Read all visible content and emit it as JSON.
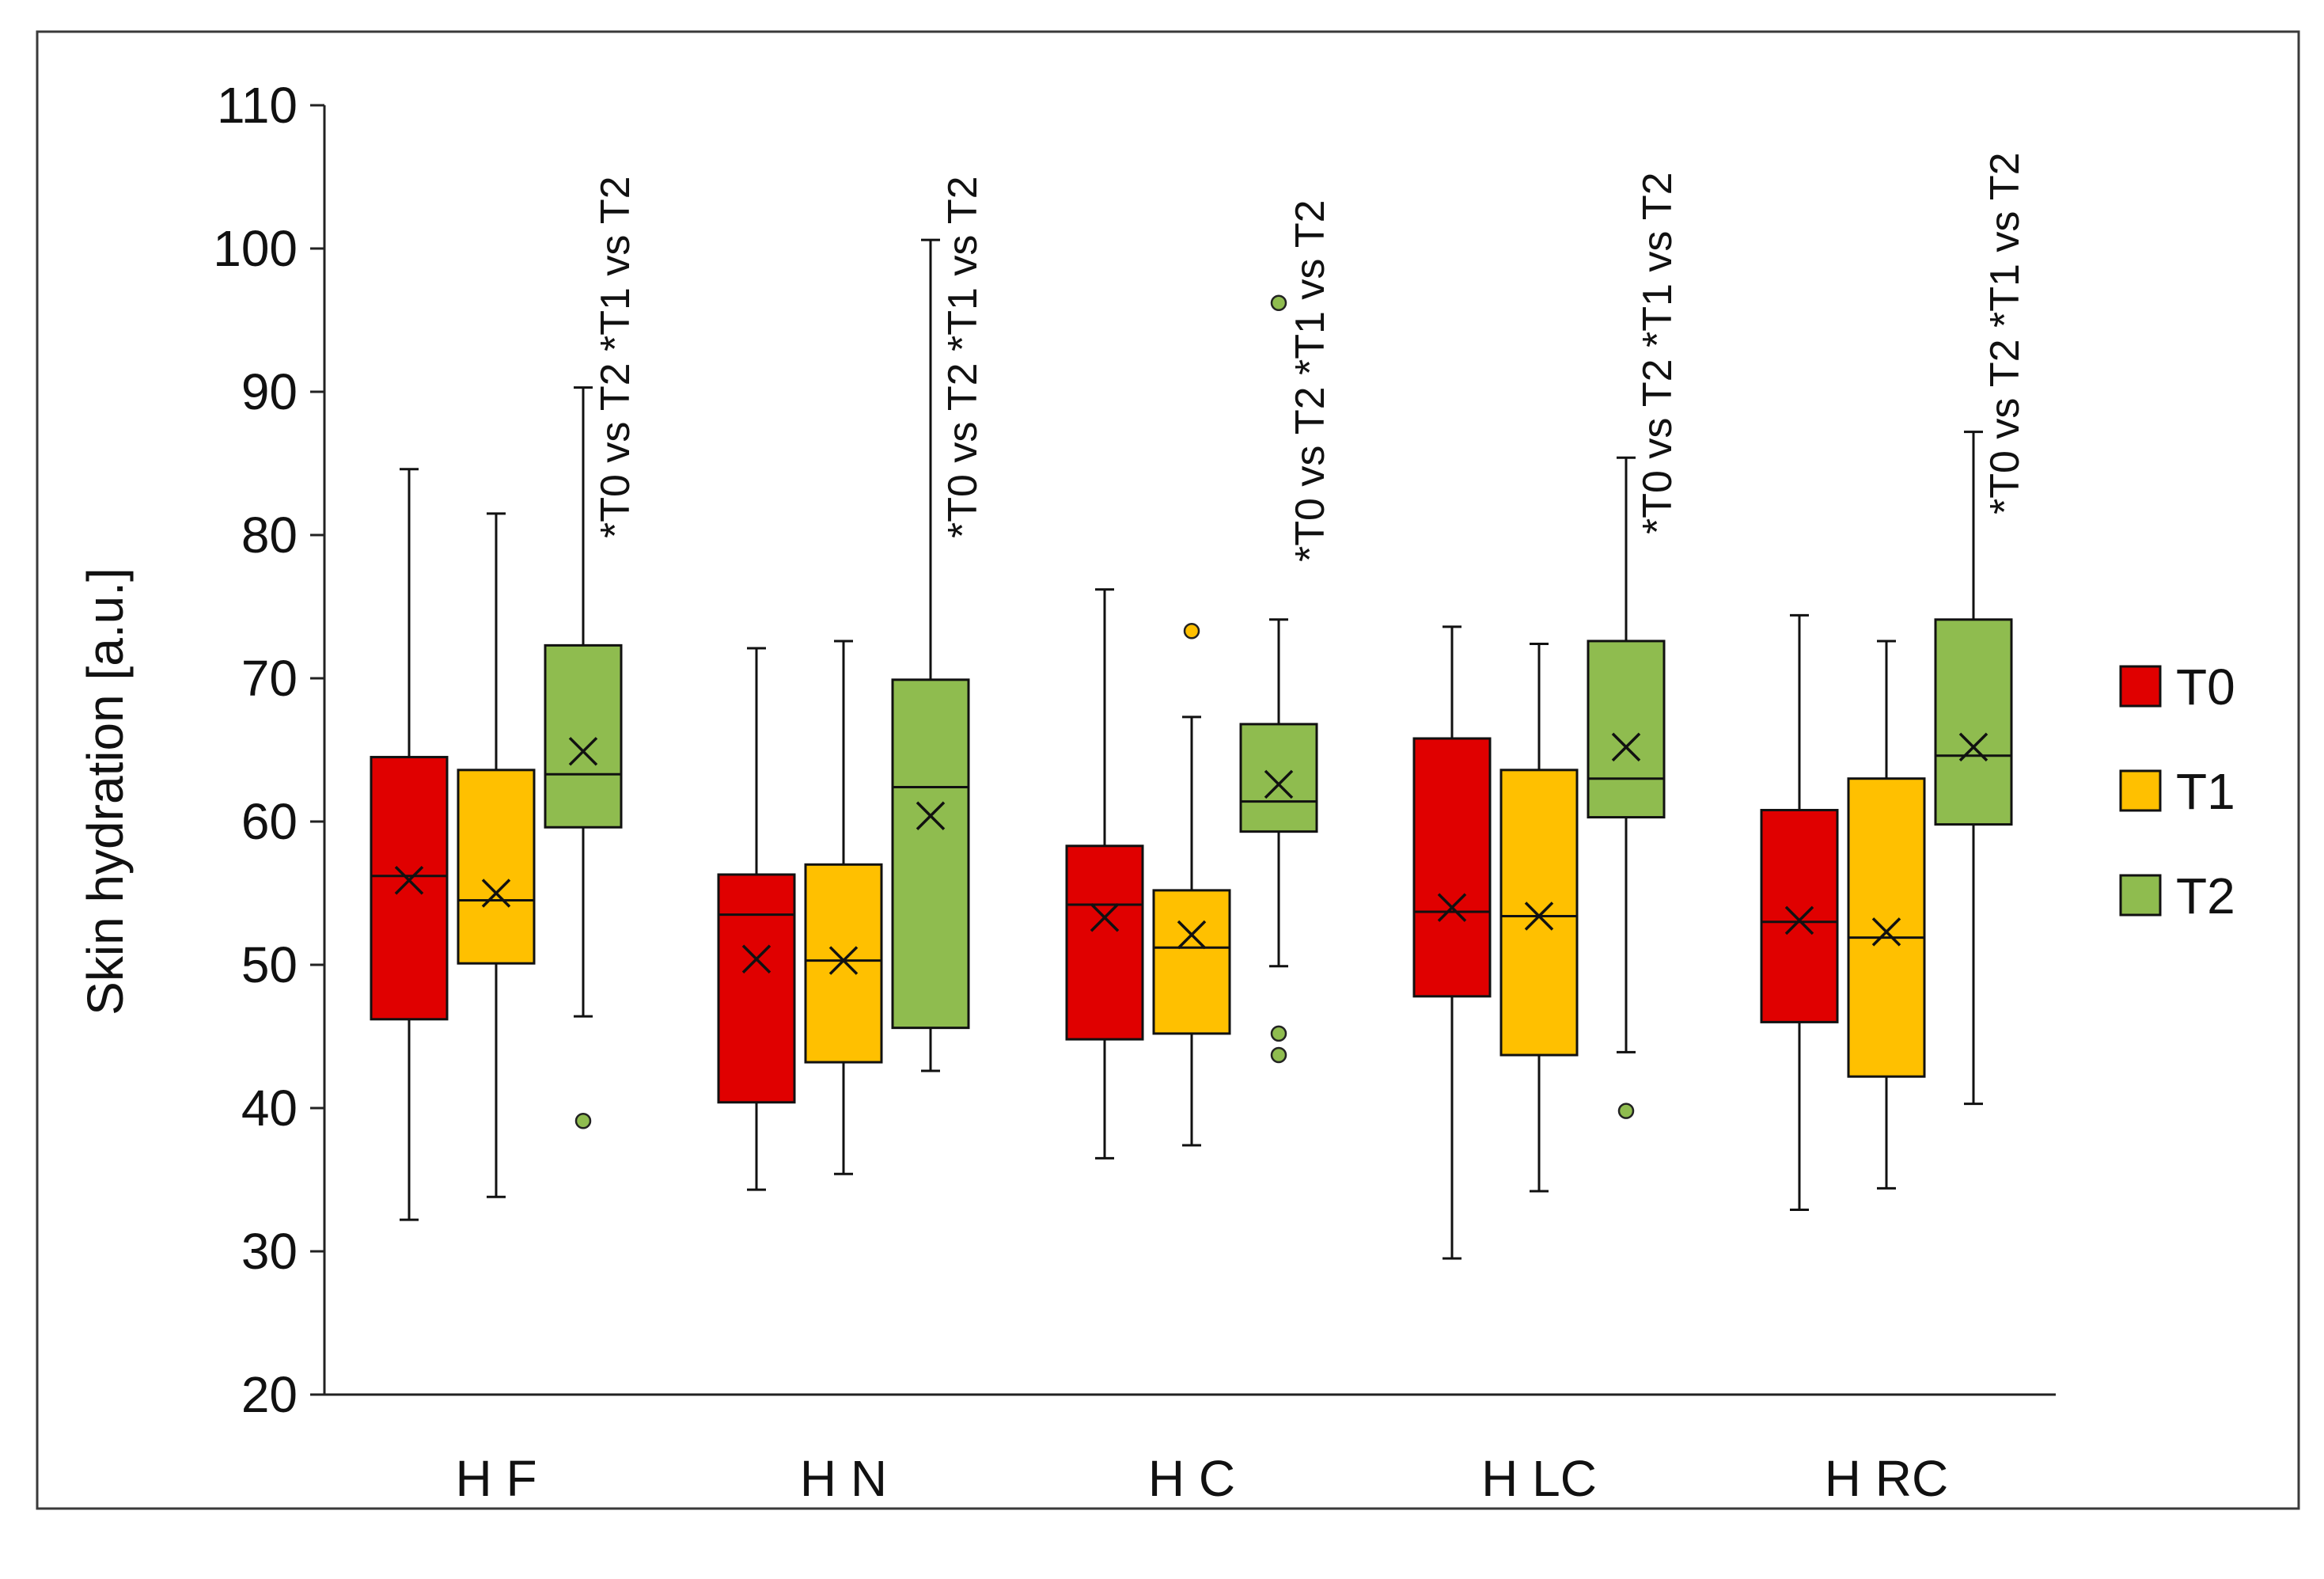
{
  "chart_data": {
    "type": "boxplot",
    "title": "",
    "xlabel": "",
    "ylabel": "Skin hydration [a.u.]",
    "ylim": [
      20,
      110
    ],
    "yticks": [
      20,
      30,
      40,
      50,
      60,
      70,
      80,
      90,
      100,
      110
    ],
    "grid": false,
    "legend_position": "right",
    "categories": [
      "H F",
      "H N",
      "H C",
      "H LC",
      "H RC"
    ],
    "series": [
      {
        "name": "T0",
        "color": "#e00000",
        "boxes": [
          {
            "whisker_low": 32.2,
            "q1": 46.2,
            "median": 56.2,
            "q3": 64.5,
            "whisker_high": 84.6,
            "mean": 55.9,
            "outliers": []
          },
          {
            "whisker_low": 34.3,
            "q1": 40.4,
            "median": 53.5,
            "q3": 56.3,
            "whisker_high": 72.1,
            "mean": 50.4,
            "outliers": []
          },
          {
            "whisker_low": 36.5,
            "q1": 44.8,
            "median": 54.2,
            "q3": 58.3,
            "whisker_high": 76.2,
            "mean": 53.3,
            "outliers": []
          },
          {
            "whisker_low": 29.5,
            "q1": 47.8,
            "median": 53.7,
            "q3": 65.8,
            "whisker_high": 73.6,
            "mean": 54.0,
            "outliers": []
          },
          {
            "whisker_low": 32.9,
            "q1": 46.0,
            "median": 53.0,
            "q3": 60.8,
            "whisker_high": 74.4,
            "mean": 53.1,
            "outliers": []
          }
        ]
      },
      {
        "name": "T1",
        "color": "#ffc000",
        "boxes": [
          {
            "whisker_low": 33.8,
            "q1": 50.1,
            "median": 54.5,
            "q3": 63.6,
            "whisker_high": 81.5,
            "mean": 55.0,
            "outliers": []
          },
          {
            "whisker_low": 35.4,
            "q1": 43.2,
            "median": 50.3,
            "q3": 57.0,
            "whisker_high": 72.6,
            "mean": 50.3,
            "outliers": []
          },
          {
            "whisker_low": 37.4,
            "q1": 45.2,
            "median": 51.2,
            "q3": 55.2,
            "whisker_high": 67.3,
            "mean": 52.1,
            "outliers": [
              73.3
            ]
          },
          {
            "whisker_low": 34.2,
            "q1": 43.7,
            "median": 53.4,
            "q3": 63.6,
            "whisker_high": 72.4,
            "mean": 53.4,
            "outliers": []
          },
          {
            "whisker_low": 34.4,
            "q1": 42.2,
            "median": 51.9,
            "q3": 63.0,
            "whisker_high": 72.6,
            "mean": 52.3,
            "outliers": []
          }
        ]
      },
      {
        "name": "T2",
        "color": "#8fbc4f",
        "boxes": [
          {
            "whisker_low": 46.4,
            "q1": 59.6,
            "median": 63.3,
            "q3": 72.3,
            "whisker_high": 90.3,
            "mean": 64.9,
            "outliers": [
              39.1
            ]
          },
          {
            "whisker_low": 42.6,
            "q1": 45.6,
            "median": 62.4,
            "q3": 69.9,
            "whisker_high": 100.6,
            "mean": 60.4,
            "outliers": []
          },
          {
            "whisker_low": 49.9,
            "q1": 59.3,
            "median": 61.4,
            "q3": 66.8,
            "whisker_high": 74.1,
            "mean": 62.6,
            "outliers": [
              96.2,
              45.2,
              43.7
            ]
          },
          {
            "whisker_low": 43.9,
            "q1": 60.3,
            "median": 63.0,
            "q3": 72.6,
            "whisker_high": 85.4,
            "mean": 65.2,
            "outliers": [
              39.8
            ]
          },
          {
            "whisker_low": 40.3,
            "q1": 59.8,
            "median": 64.6,
            "q3": 74.1,
            "whisker_high": 87.2,
            "mean": 65.2,
            "outliers": []
          }
        ]
      }
    ],
    "annotations": [
      "*T0 vs T2 *T1 vs T2",
      "*T0 vs T2 *T1 vs T2",
      "*T0 vs T2 *T1 vs T2",
      "*T0 vs T2 *T1 vs T2",
      "*T0 vs T2 *T1 vs T2"
    ]
  }
}
